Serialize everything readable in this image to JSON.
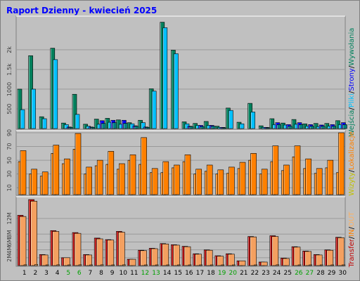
{
  "title": "Raport Dzienny -  kwiecień 2025",
  "colors": {
    "background": "#c0c0c0",
    "title": "#0000ff",
    "weekend_label": "#00a000",
    "wejscia": "#00805c",
    "pliki": "#00c0ff",
    "strony": "#0000ff",
    "wizyty": "#ff8000",
    "lokalizacje": "#ff8000",
    "transfer": "#c00000",
    "in": "#ff8000",
    "out": "#ffb060"
  },
  "legends": {
    "top": [
      "Wejścia",
      "/",
      "Pliki",
      "/",
      "Strony",
      "/",
      "Wywołania"
    ],
    "middle": [
      "Wizyty",
      "/",
      "Lokalizacje"
    ],
    "bottom": [
      "Transfer",
      "/",
      "IN",
      "/",
      "OUT"
    ]
  },
  "chart_data": [
    {
      "type": "bar",
      "panel": "top",
      "ylim": [
        0,
        2800
      ],
      "yticks": [
        "500",
        "1000",
        "1.5k",
        "2k"
      ],
      "categories": [
        "1",
        "2",
        "3",
        "4",
        "5",
        "6",
        "7",
        "8",
        "9",
        "10",
        "11",
        "12",
        "13",
        "14",
        "15",
        "16",
        "17",
        "18",
        "19",
        "20",
        "21",
        "22",
        "23",
        "24",
        "25",
        "26",
        "27",
        "28",
        "29",
        "30"
      ],
      "weekend_days": [
        "5",
        "6",
        "12",
        "13",
        "19",
        "20",
        "26",
        "27"
      ],
      "series": [
        {
          "name": "Wejścia",
          "values": [
            1000,
            1850,
            300,
            2040,
            140,
            870,
            110,
            240,
            260,
            220,
            150,
            210,
            1010,
            2700,
            1990,
            170,
            130,
            180,
            60,
            520,
            160,
            640,
            70,
            250,
            140,
            230,
            120,
            130,
            130,
            200
          ]
        },
        {
          "name": "Pliki",
          "values": [
            480,
            1000,
            250,
            1750,
            100,
            360,
            60,
            110,
            160,
            110,
            120,
            150,
            950,
            2560,
            1900,
            120,
            80,
            80,
            30,
            460,
            120,
            420,
            30,
            100,
            90,
            110,
            60,
            50,
            60,
            100
          ]
        },
        {
          "name": "Strony",
          "values": [
            0,
            0,
            0,
            0,
            40,
            0,
            40,
            200,
            210,
            210,
            70,
            40,
            0,
            0,
            0,
            60,
            80,
            80,
            30,
            0,
            0,
            0,
            30,
            150,
            100,
            150,
            100,
            90,
            100,
            150
          ]
        },
        {
          "name": "Wywołania",
          "values": [
            0,
            0,
            0,
            0,
            30,
            0,
            30,
            130,
            150,
            130,
            60,
            30,
            0,
            0,
            0,
            50,
            50,
            60,
            20,
            0,
            0,
            0,
            20,
            100,
            60,
            100,
            60,
            60,
            60,
            100
          ]
        }
      ]
    },
    {
      "type": "bar",
      "panel": "middle",
      "ylim": [
        0,
        90
      ],
      "yticks": [
        "10",
        "30",
        "50",
        "70",
        "90"
      ],
      "categories": [
        "1",
        "2",
        "3",
        "4",
        "5",
        "6",
        "7",
        "8",
        "9",
        "10",
        "11",
        "12",
        "13",
        "14",
        "15",
        "16",
        "17",
        "18",
        "19",
        "20",
        "21",
        "22",
        "23",
        "24",
        "25",
        "26",
        "27",
        "28",
        "29",
        "30"
      ],
      "series": [
        {
          "name": "Wizyty",
          "values": [
            48,
            30,
            27,
            60,
            45,
            66,
            30,
            42,
            44,
            37,
            50,
            44,
            32,
            32,
            39,
            48,
            30,
            34,
            30,
            31,
            38,
            50,
            30,
            48,
            35,
            55,
            38,
            31,
            39,
            32
          ]
        },
        {
          "name": "Lokalizacje",
          "values": [
            64,
            37,
            33,
            72,
            52,
            89,
            40,
            50,
            63,
            45,
            58,
            83,
            38,
            48,
            43,
            58,
            37,
            43,
            36,
            40,
            47,
            60,
            37,
            71,
            43,
            71,
            52,
            38,
            50,
            90
          ]
        }
      ]
    },
    {
      "type": "bar",
      "panel": "bottom",
      "ylim": [
        0,
        17
      ],
      "yticks": [
        "2M",
        "4M",
        "6M",
        "8M",
        "12M"
      ],
      "categories": [
        "1",
        "2",
        "3",
        "4",
        "5",
        "6",
        "7",
        "8",
        "9",
        "10",
        "11",
        "12",
        "13",
        "14",
        "15",
        "16",
        "17",
        "18",
        "19",
        "20",
        "21",
        "22",
        "23",
        "24",
        "25",
        "26",
        "27",
        "28",
        "29",
        "30"
      ],
      "series": [
        {
          "name": "Transfer",
          "values": [
            12.8,
            16.8,
            2.8,
            8.9,
            2.0,
            8.4,
            2.8,
            7.0,
            6.6,
            8.7,
            1.6,
            3.9,
            4.4,
            5.6,
            5.3,
            4.9,
            3.0,
            4.0,
            2.5,
            3.0,
            1.2,
            7.4,
            0.9,
            7.6,
            1.9,
            4.8,
            3.7,
            2.8,
            4.0,
            7.2
          ]
        },
        {
          "name": "IN",
          "values": [
            12.5,
            16.4,
            2.7,
            8.7,
            2.0,
            8.2,
            2.7,
            6.8,
            6.5,
            8.5,
            1.6,
            3.8,
            4.3,
            5.5,
            5.2,
            4.8,
            2.9,
            3.9,
            2.4,
            2.9,
            1.2,
            7.3,
            0.9,
            7.4,
            1.8,
            4.7,
            3.6,
            2.7,
            3.9,
            7.1
          ]
        },
        {
          "name": "OUT",
          "values": [
            0.2,
            0.3,
            0.1,
            0.2,
            0.1,
            0.2,
            0.1,
            0.2,
            0.1,
            0.2,
            0.0,
            0.1,
            0.1,
            0.1,
            0.1,
            0.1,
            0.1,
            0.1,
            0.1,
            0.1,
            0.0,
            0.1,
            0.0,
            0.2,
            0.0,
            0.1,
            0.1,
            0.1,
            0.1,
            0.1
          ]
        }
      ]
    }
  ]
}
